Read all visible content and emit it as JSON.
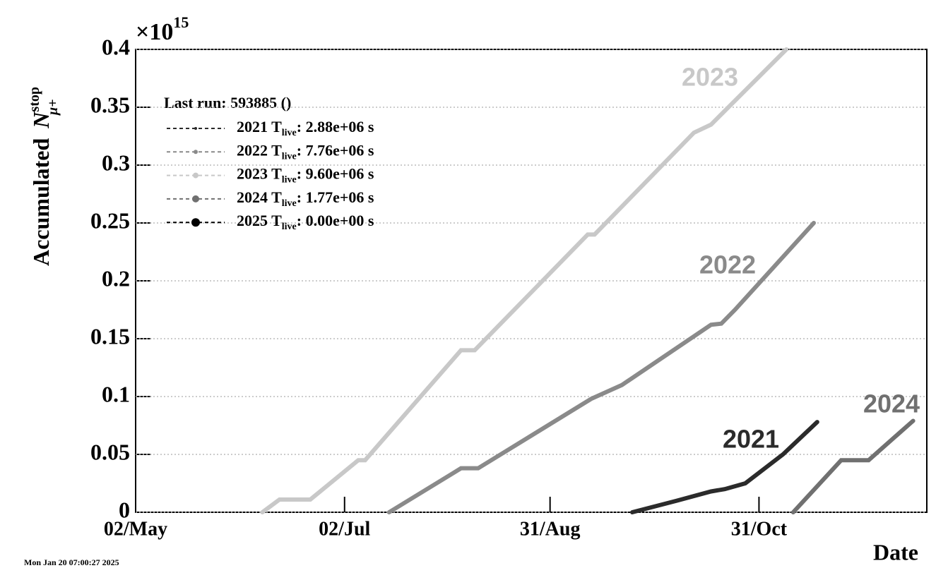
{
  "chart_data": {
    "type": "line",
    "y_multiplier": {
      "base": "×10",
      "exponent": "15"
    },
    "ylabel": {
      "main": "Accumulated",
      "symbol": "N",
      "sup": "stop",
      "sub": "μ+"
    },
    "xlabel": "Date",
    "footer": "Mon Jan 20 07:00:27 2025",
    "legend_header": "Last run: 593885 ()",
    "xlim": [
      "02/May",
      "19/Dec"
    ],
    "xticks": [
      "02/May",
      "02/Jul",
      "31/Aug",
      "31/Oct"
    ],
    "ylim": [
      0,
      0.4
    ],
    "yticks": [
      0,
      0.05,
      0.1,
      0.15,
      0.2,
      0.25,
      0.3,
      0.35,
      0.4
    ],
    "grid": true,
    "series": [
      {
        "name": "2021",
        "color": "#2b2b2b",
        "legend_label": {
          "main": "2021 T",
          "sub": "live",
          "rest": ": 2.88e+06 s"
        },
        "x": [
          "24/Sep",
          "07/Oct",
          "17/Oct",
          "21/Oct",
          "27/Oct",
          "07/Nov",
          "17/Nov"
        ],
        "values": [
          0,
          0.01,
          0.018,
          0.02,
          0.025,
          0.05,
          0.078
        ]
      },
      {
        "name": "2022",
        "color": "#8a8a8a",
        "legend_label": {
          "main": "2022 T",
          "sub": "live",
          "rest": ": 7.76e+06 s"
        },
        "x": [
          "15/Jul",
          "05/Aug",
          "10/Aug",
          "12/Sep",
          "21/Sep",
          "17/Oct",
          "20/Oct",
          "24/Oct",
          "16/Nov"
        ],
        "values": [
          0,
          0.038,
          0.038,
          0.098,
          0.11,
          0.162,
          0.163,
          0.175,
          0.25
        ]
      },
      {
        "name": "2023",
        "color": "#c8c8c8",
        "legend_label": {
          "main": "2023 T",
          "sub": "live",
          "rest": ": 9.60e+06 s"
        },
        "x": [
          "08/Jun",
          "13/Jun",
          "22/Jun",
          "06/Jul",
          "08/Jul",
          "05/Aug",
          "09/Aug",
          "11/Sep",
          "13/Sep",
          "12/Oct",
          "17/Oct",
          "08/Nov"
        ],
        "values": [
          0,
          0.011,
          0.011,
          0.045,
          0.045,
          0.14,
          0.14,
          0.24,
          0.24,
          0.328,
          0.335,
          0.4
        ]
      },
      {
        "name": "2024",
        "color": "#707070",
        "legend_label": {
          "main": "2024 T",
          "sub": "live",
          "rest": ": 1.77e+06 s"
        },
        "x": [
          "10/Nov",
          "24/Nov",
          "02/Dec",
          "15/Dec"
        ],
        "values": [
          0,
          0.045,
          0.045,
          0.079
        ]
      },
      {
        "name": "2025",
        "color": "#000000",
        "legend_label": {
          "main": "2025 T",
          "sub": "live",
          "rest": ": 0.00e+00 s"
        },
        "x": [],
        "values": []
      }
    ]
  }
}
